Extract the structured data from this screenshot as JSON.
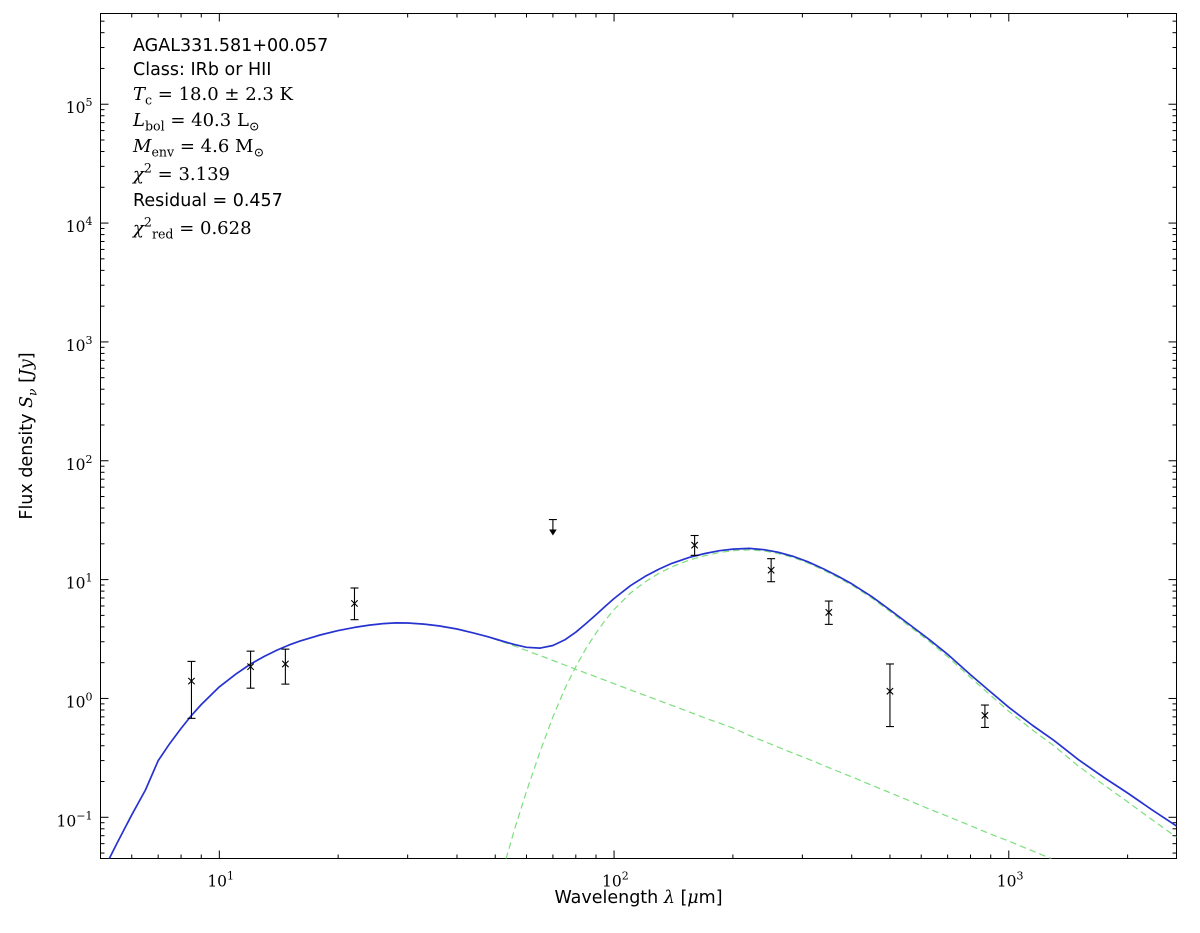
{
  "figure": {
    "background": "#ffffff",
    "annotation_lines": [
      {
        "font": "sans",
        "segs": [
          {
            "t": "AGAL331.581+00.057",
            "style": "sans"
          }
        ]
      },
      {
        "font": "sans",
        "segs": [
          {
            "t": "Class: IRb or HII",
            "style": "sans"
          }
        ]
      },
      {
        "font": "math",
        "segs": [
          {
            "t": "T",
            "style": "it"
          },
          {
            "t": "c",
            "style": "sub"
          },
          {
            "t": " = 18.0 ± 2.3 K",
            "style": "rm"
          }
        ]
      },
      {
        "font": "math",
        "segs": [
          {
            "t": "L",
            "style": "it"
          },
          {
            "t": "bol",
            "style": "sub"
          },
          {
            "t": " = 40.3 L",
            "style": "rm"
          },
          {
            "t": "⊙",
            "style": "sub"
          }
        ]
      },
      {
        "font": "math",
        "segs": [
          {
            "t": "M",
            "style": "it"
          },
          {
            "t": "env",
            "style": "sub"
          },
          {
            "t": " = 4.6 M",
            "style": "rm"
          },
          {
            "t": "⊙",
            "style": "sub"
          }
        ]
      },
      {
        "font": "math",
        "segs": [
          {
            "t": "χ",
            "style": "it"
          },
          {
            "t": "2",
            "style": "sup"
          },
          {
            "t": " = 3.139",
            "style": "rm"
          }
        ]
      },
      {
        "font": "sans",
        "segs": [
          {
            "t": "Residual = 0.457",
            "style": "sans"
          }
        ]
      },
      {
        "font": "math",
        "segs": [
          {
            "t": "χ",
            "style": "it"
          },
          {
            "t": "2",
            "style": "sup"
          },
          {
            "t": "red",
            "style": "sub"
          },
          {
            "t": " = 0.628",
            "style": "rm"
          }
        ]
      }
    ]
  },
  "chart_data": {
    "type": "line",
    "title": "",
    "xlabel": "Wavelength λ [μm]",
    "ylabel": "Flux density S_ν [Jy]",
    "xlabel_parts": [
      {
        "t": "Wavelength ",
        "style": "sans"
      },
      {
        "t": "λ",
        "style": "it"
      },
      {
        "t": " [",
        "style": "sans"
      },
      {
        "t": "μ",
        "style": "it"
      },
      {
        "t": "m",
        "style": "sans"
      },
      {
        "t": "]",
        "style": "sans"
      }
    ],
    "ylabel_parts": [
      {
        "t": "Flux density ",
        "style": "sans"
      },
      {
        "t": "S",
        "style": "it"
      },
      {
        "t": "ν",
        "style": "subit"
      },
      {
        "t": " [",
        "style": "sans"
      },
      {
        "t": "Jy",
        "style": "it"
      },
      {
        "t": "]",
        "style": "sans"
      }
    ],
    "annotations": [
      "AGAL331.581+00.057",
      "Class: IRb or HII",
      "T_c = 18.0 ± 2.3 K",
      "L_bol = 40.3 L_sun",
      "M_env = 4.6 M_sun",
      "chi^2 = 3.139",
      "Residual = 0.457",
      "chi^2_red = 0.628"
    ],
    "legend": "none",
    "grid": false,
    "x_axis": {
      "scale": "log",
      "min": 5.0,
      "max": 2660,
      "base": "10",
      "ticks": [
        {
          "value": 10,
          "label_exp": "1"
        },
        {
          "value": 100,
          "label_exp": "2"
        },
        {
          "value": 1000,
          "label_exp": "3"
        }
      ]
    },
    "y_axis": {
      "scale": "log",
      "min": 0.045,
      "max": 580000,
      "base": "10",
      "ticks": [
        {
          "value": 0.1,
          "label_exp": "−1"
        },
        {
          "value": 1,
          "label_exp": "0"
        },
        {
          "value": 10,
          "label_exp": "1"
        },
        {
          "value": 100,
          "label_exp": "2"
        },
        {
          "value": 1000,
          "label_exp": "3"
        },
        {
          "value": 10000,
          "label_exp": "4"
        },
        {
          "value": 100000,
          "label_exp": "5"
        }
      ]
    },
    "colors": {
      "model_total": "#2733d0",
      "model_components": "#7bdf7b",
      "data": "#000000"
    },
    "x_grid": [
      5,
      5.5,
      6,
      6.5,
      7,
      7.5,
      8,
      8.5,
      9,
      10,
      11,
      12,
      13,
      14,
      15,
      16,
      18,
      20,
      22,
      24,
      26,
      28,
      30,
      33,
      36,
      40,
      44,
      48,
      52,
      56,
      60,
      65,
      70,
      75,
      80,
      85,
      90,
      95,
      100,
      110,
      120,
      130,
      140,
      155,
      170,
      185,
      200,
      220,
      240,
      260,
      285,
      310,
      340,
      370,
      400,
      450,
      500,
      560,
      630,
      700,
      800,
      900,
      1000,
      1150,
      1300,
      1500,
      1750,
      2000,
      2300,
      2660
    ],
    "series": [
      {
        "name": "warm-component",
        "label": "warm component (dashed)",
        "color": "#7bdf7b",
        "dash": true,
        "y": [
          0.032,
          0.06,
          0.105,
          0.17,
          0.3,
          0.42,
          0.56,
          0.72,
          0.89,
          1.25,
          1.6,
          1.95,
          2.26,
          2.55,
          2.81,
          3.04,
          3.42,
          3.72,
          3.96,
          4.14,
          4.26,
          4.32,
          4.31,
          4.22,
          4.08,
          3.84,
          3.56,
          3.29,
          3.01,
          2.76,
          2.53,
          2.29,
          2.09,
          1.91,
          1.76,
          1.63,
          1.52,
          1.42,
          1.33,
          1.18,
          1.06,
          0.96,
          0.875,
          0.77,
          0.685,
          0.62,
          0.565,
          0.49,
          0.435,
          0.39,
          0.345,
          0.31,
          0.272,
          0.243,
          0.219,
          0.186,
          0.161,
          0.138,
          0.117,
          0.102,
          0.085,
          0.072,
          0.063,
          0.052,
          0.044,
          0.036,
          0.029,
          0.025,
          0.02,
          0.0165
        ]
      },
      {
        "name": "cold-component",
        "label": "cold envelope component (dashed), T_c = 18.0 K",
        "color": "#7bdf7b",
        "dash": true,
        "y": [
          1e-05,
          1e-05,
          1e-05,
          1e-05,
          1e-05,
          1e-05,
          1e-05,
          1e-05,
          1e-05,
          1e-05,
          1e-05,
          1e-05,
          1e-05,
          1e-05,
          1e-05,
          1e-05,
          1e-05,
          1e-05,
          1e-05,
          1e-05,
          1e-05,
          1e-05,
          1e-05,
          1e-05,
          0.0001,
          0.0008,
          0.0035,
          0.012,
          0.034,
          0.08,
          0.165,
          0.36,
          0.7,
          1.2,
          1.85,
          2.65,
          3.55,
          4.55,
          5.6,
          7.7,
          9.6,
          11.3,
          12.8,
          14.6,
          15.9,
          16.9,
          17.5,
          17.8,
          17.4,
          16.6,
          15.3,
          13.8,
          12.0,
          10.4,
          9.0,
          7.0,
          5.4,
          4.05,
          3.0,
          2.25,
          1.5,
          1.06,
          0.78,
          0.54,
          0.4,
          0.27,
          0.185,
          0.135,
          0.096,
          0.068
        ]
      },
      {
        "name": "total-model",
        "label": "total model fit (solid)",
        "color": "#2733d0",
        "dash": false,
        "derived": "sum"
      }
    ],
    "points": [
      {
        "x": 8.5,
        "y": 1.4,
        "y_lo": 0.68,
        "y_hi": 2.05,
        "marker": "x"
      },
      {
        "x": 12,
        "y": 1.85,
        "y_lo": 1.22,
        "y_hi": 2.5,
        "marker": "x"
      },
      {
        "x": 14.7,
        "y": 1.95,
        "y_lo": 1.32,
        "y_hi": 2.6,
        "marker": "x"
      },
      {
        "x": 22,
        "y": 6.3,
        "y_lo": 4.6,
        "y_hi": 8.5,
        "marker": "x"
      },
      {
        "x": 70,
        "y": 30.0,
        "y_lo": 23.5,
        "y_hi": 32.0,
        "marker": "limit",
        "upper_limit": true
      },
      {
        "x": 160,
        "y": 19.5,
        "y_lo": 16.0,
        "y_hi": 23.5,
        "marker": "x"
      },
      {
        "x": 250,
        "y": 12.0,
        "y_lo": 9.6,
        "y_hi": 15.0,
        "marker": "x"
      },
      {
        "x": 350,
        "y": 5.3,
        "y_lo": 4.2,
        "y_hi": 6.6,
        "marker": "x"
      },
      {
        "x": 500,
        "y": 1.15,
        "y_lo": 0.58,
        "y_hi": 1.95,
        "marker": "x"
      },
      {
        "x": 870,
        "y": 0.72,
        "y_lo": 0.57,
        "y_hi": 0.88,
        "marker": "x"
      }
    ]
  }
}
